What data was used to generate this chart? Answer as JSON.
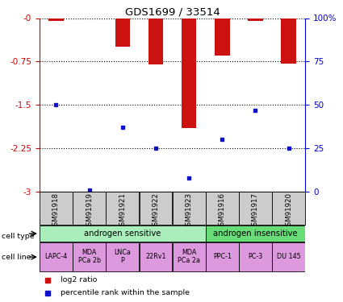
{
  "title": "GDS1699 / 33514",
  "samples": [
    "GSM91918",
    "GSM91919",
    "GSM91921",
    "GSM91922",
    "GSM91923",
    "GSM91916",
    "GSM91917",
    "GSM91920"
  ],
  "log2_ratio": [
    -0.05,
    -0.0,
    -0.5,
    -0.8,
    -1.9,
    -0.65,
    -0.05,
    -0.78
  ],
  "percentile_rank": [
    50,
    1,
    37,
    25,
    8,
    30,
    47,
    25
  ],
  "ylim_left": [
    -3,
    0
  ],
  "ylim_right": [
    0,
    100
  ],
  "yticks_left": [
    0,
    -0.75,
    -1.5,
    -2.25,
    -3
  ],
  "yticks_right": [
    0,
    25,
    50,
    75,
    100
  ],
  "cell_type_groups": [
    {
      "label": "androgen sensitive",
      "start": 0,
      "end": 5,
      "color": "#aaeebb"
    },
    {
      "label": "androgen insensitive",
      "start": 5,
      "end": 8,
      "color": "#66dd77"
    }
  ],
  "cell_lines": [
    {
      "label": "LAPC-4",
      "col": 0
    },
    {
      "label": "MDA\nPCa 2b",
      "col": 1
    },
    {
      "label": "LNCa\nP",
      "col": 2
    },
    {
      "label": "22Rv1",
      "col": 3
    },
    {
      "label": "MDA\nPCa 2a",
      "col": 4
    },
    {
      "label": "PPC-1",
      "col": 5
    },
    {
      "label": "PC-3",
      "col": 6
    },
    {
      "label": "DU 145",
      "col": 7
    }
  ],
  "bar_color": "#cc1111",
  "dot_color": "#1111cc",
  "grid_color": "#000000",
  "axis_color_left": "#cc0000",
  "axis_color_right": "#0000cc",
  "sample_label_bg": "#cccccc",
  "cell_line_color": "#dd99dd",
  "legend_items": [
    {
      "label": "log2 ratio",
      "color": "#cc1111"
    },
    {
      "label": "percentile rank within the sample",
      "color": "#1111cc"
    }
  ]
}
